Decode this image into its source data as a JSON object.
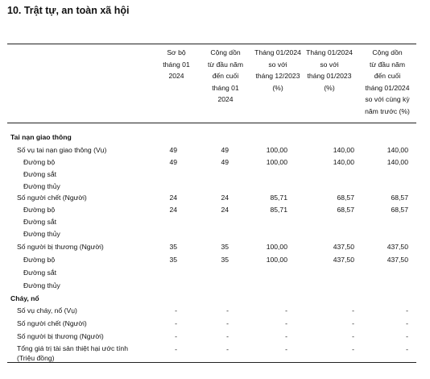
{
  "title": "10. Trật tự, an toàn xã hội",
  "columns": [
    "Sơ bộ\ntháng 01\n2024",
    "Cộng dồn\ntừ đầu năm\nđến cuối\ntháng 01\n2024",
    "Tháng 01/2024\nso với\ntháng 12/2023\n(%)",
    "Tháng 01/2024\nso với\ntháng 01/2023\n(%)",
    "Cộng dồn\ntừ đầu năm\nđến cuối\ntháng 01/2024\nso với cùng kỳ\nnăm trước (%)"
  ],
  "rows": [
    {
      "label": "Tai nạn giao thông",
      "level": 0,
      "values": [
        "",
        "",
        "",
        "",
        ""
      ]
    },
    {
      "label": "Số vụ tai nạn giao thông (Vụ)",
      "level": 1,
      "values": [
        "49",
        "49",
        "100,00",
        "140,00",
        "140,00"
      ]
    },
    {
      "label": "Đường bộ",
      "level": 2,
      "values": [
        "49",
        "49",
        "100,00",
        "140,00",
        "140,00"
      ]
    },
    {
      "label": "Đường sắt",
      "level": 2,
      "values": [
        "",
        "",
        "",
        "",
        ""
      ]
    },
    {
      "label": "Đường thủy",
      "level": 2,
      "values": [
        "",
        "",
        "",
        "",
        ""
      ]
    },
    {
      "label": "Số người chết (Người)",
      "level": 1,
      "values": [
        "24",
        "24",
        "85,71",
        "68,57",
        "68,57"
      ]
    },
    {
      "label": "Đường bộ",
      "level": 2,
      "values": [
        "24",
        "24",
        "85,71",
        "68,57",
        "68,57"
      ]
    },
    {
      "label": "Đường sắt",
      "level": 2,
      "values": [
        "",
        "",
        "",
        "",
        ""
      ]
    },
    {
      "label": "Đường thủy",
      "level": 2,
      "values": [
        "",
        "",
        "",
        "",
        ""
      ]
    },
    {
      "label": "Số người bị thương (Người)",
      "level": 1,
      "values": [
        "35",
        "35",
        "100,00",
        "437,50",
        "437,50"
      ]
    },
    {
      "label": "Đường bộ",
      "level": 2,
      "values": [
        "35",
        "35",
        "100,00",
        "437,50",
        "437,50"
      ]
    },
    {
      "label": "Đường sắt",
      "level": 2,
      "values": [
        "",
        "",
        "",
        "",
        ""
      ]
    },
    {
      "label": "Đường thủy",
      "level": 2,
      "values": [
        "",
        "",
        "",
        "",
        ""
      ]
    },
    {
      "label": "Cháy, nổ",
      "level": 0,
      "values": [
        "",
        "",
        "",
        "",
        ""
      ]
    },
    {
      "label": "Số vụ cháy, nổ (Vụ)",
      "level": 1,
      "values": [
        "-",
        "-",
        "-",
        "-",
        "-"
      ]
    },
    {
      "label": "Số người chết (Người)",
      "level": 1,
      "values": [
        "-",
        "-",
        "-",
        "-",
        "-"
      ]
    },
    {
      "label": "Số người bị thương (Người)",
      "level": 1,
      "values": [
        "-",
        "-",
        "-",
        "-",
        "-"
      ]
    },
    {
      "label": "Tổng giá trị tài sản thiệt hại ước tính\n(Triệu đồng)",
      "level": 1,
      "values": [
        "-",
        "-",
        "-",
        "-",
        "-"
      ]
    }
  ]
}
